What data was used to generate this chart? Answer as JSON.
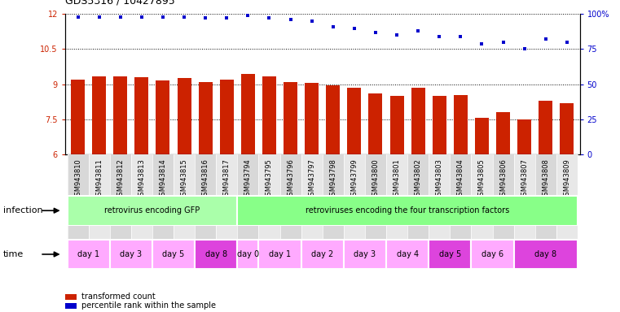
{
  "title": "GDS5316 / 10427895",
  "samples": [
    "GSM943810",
    "GSM943811",
    "GSM943812",
    "GSM943813",
    "GSM943814",
    "GSM943815",
    "GSM943816",
    "GSM943817",
    "GSM943794",
    "GSM943795",
    "GSM943796",
    "GSM943797",
    "GSM943798",
    "GSM943799",
    "GSM943800",
    "GSM943801",
    "GSM943802",
    "GSM943803",
    "GSM943804",
    "GSM943805",
    "GSM943806",
    "GSM943807",
    "GSM943808",
    "GSM943809"
  ],
  "bar_values": [
    9.2,
    9.35,
    9.35,
    9.3,
    9.15,
    9.25,
    9.1,
    9.2,
    9.45,
    9.35,
    9.1,
    9.05,
    8.95,
    8.85,
    8.6,
    8.5,
    8.85,
    8.5,
    8.55,
    7.55,
    7.8,
    7.5,
    8.3,
    8.2
  ],
  "percentile_values": [
    98,
    98,
    98,
    98,
    98,
    98,
    97,
    97,
    99,
    97,
    96,
    95,
    91,
    90,
    87,
    85,
    88,
    84,
    84,
    79,
    80,
    75,
    82,
    80
  ],
  "ylim_left": [
    6,
    12
  ],
  "ylim_right": [
    0,
    100
  ],
  "yticks_left": [
    6,
    7.5,
    9,
    10.5,
    12
  ],
  "ytick_labels_left": [
    "6",
    "7.5",
    "9",
    "10.5",
    "12"
  ],
  "yticks_right": [
    0,
    25,
    50,
    75,
    100
  ],
  "ytick_labels_right": [
    "0",
    "25",
    "50",
    "75",
    "100%"
  ],
  "bar_color": "#cc2200",
  "dot_color": "#0000cc",
  "bar_width": 0.65,
  "infection_groups": [
    {
      "label": "retrovirus encoding GFP",
      "start": 0,
      "end": 7,
      "color": "#aaffaa"
    },
    {
      "label": "retroviruses encoding the four transcription factors",
      "start": 8,
      "end": 23,
      "color": "#88ff88"
    }
  ],
  "time_groups": [
    {
      "label": "day 1",
      "start": 0,
      "end": 1,
      "color": "#ffaaff"
    },
    {
      "label": "day 3",
      "start": 2,
      "end": 3,
      "color": "#ffaaff"
    },
    {
      "label": "day 5",
      "start": 4,
      "end": 5,
      "color": "#ffaaff"
    },
    {
      "label": "day 8",
      "start": 6,
      "end": 7,
      "color": "#dd44dd"
    },
    {
      "label": "day 0",
      "start": 8,
      "end": 8,
      "color": "#ffaaff"
    },
    {
      "label": "day 1",
      "start": 9,
      "end": 10,
      "color": "#ffaaff"
    },
    {
      "label": "day 2",
      "start": 11,
      "end": 12,
      "color": "#ffaaff"
    },
    {
      "label": "day 3",
      "start": 13,
      "end": 14,
      "color": "#ffaaff"
    },
    {
      "label": "day 4",
      "start": 15,
      "end": 16,
      "color": "#ffaaff"
    },
    {
      "label": "day 5",
      "start": 17,
      "end": 18,
      "color": "#dd44dd"
    },
    {
      "label": "day 6",
      "start": 19,
      "end": 20,
      "color": "#ffaaff"
    },
    {
      "label": "day 8",
      "start": 21,
      "end": 23,
      "color": "#dd44dd"
    }
  ],
  "legend_items": [
    {
      "label": "transformed count",
      "color": "#cc2200"
    },
    {
      "label": "percentile rank within the sample",
      "color": "#0000cc"
    }
  ],
  "background_color": "#ffffff",
  "title_fontsize": 9,
  "tick_fontsize": 7,
  "sample_fontsize": 6,
  "row_label_fontsize": 8,
  "annotation_fontsize": 7
}
